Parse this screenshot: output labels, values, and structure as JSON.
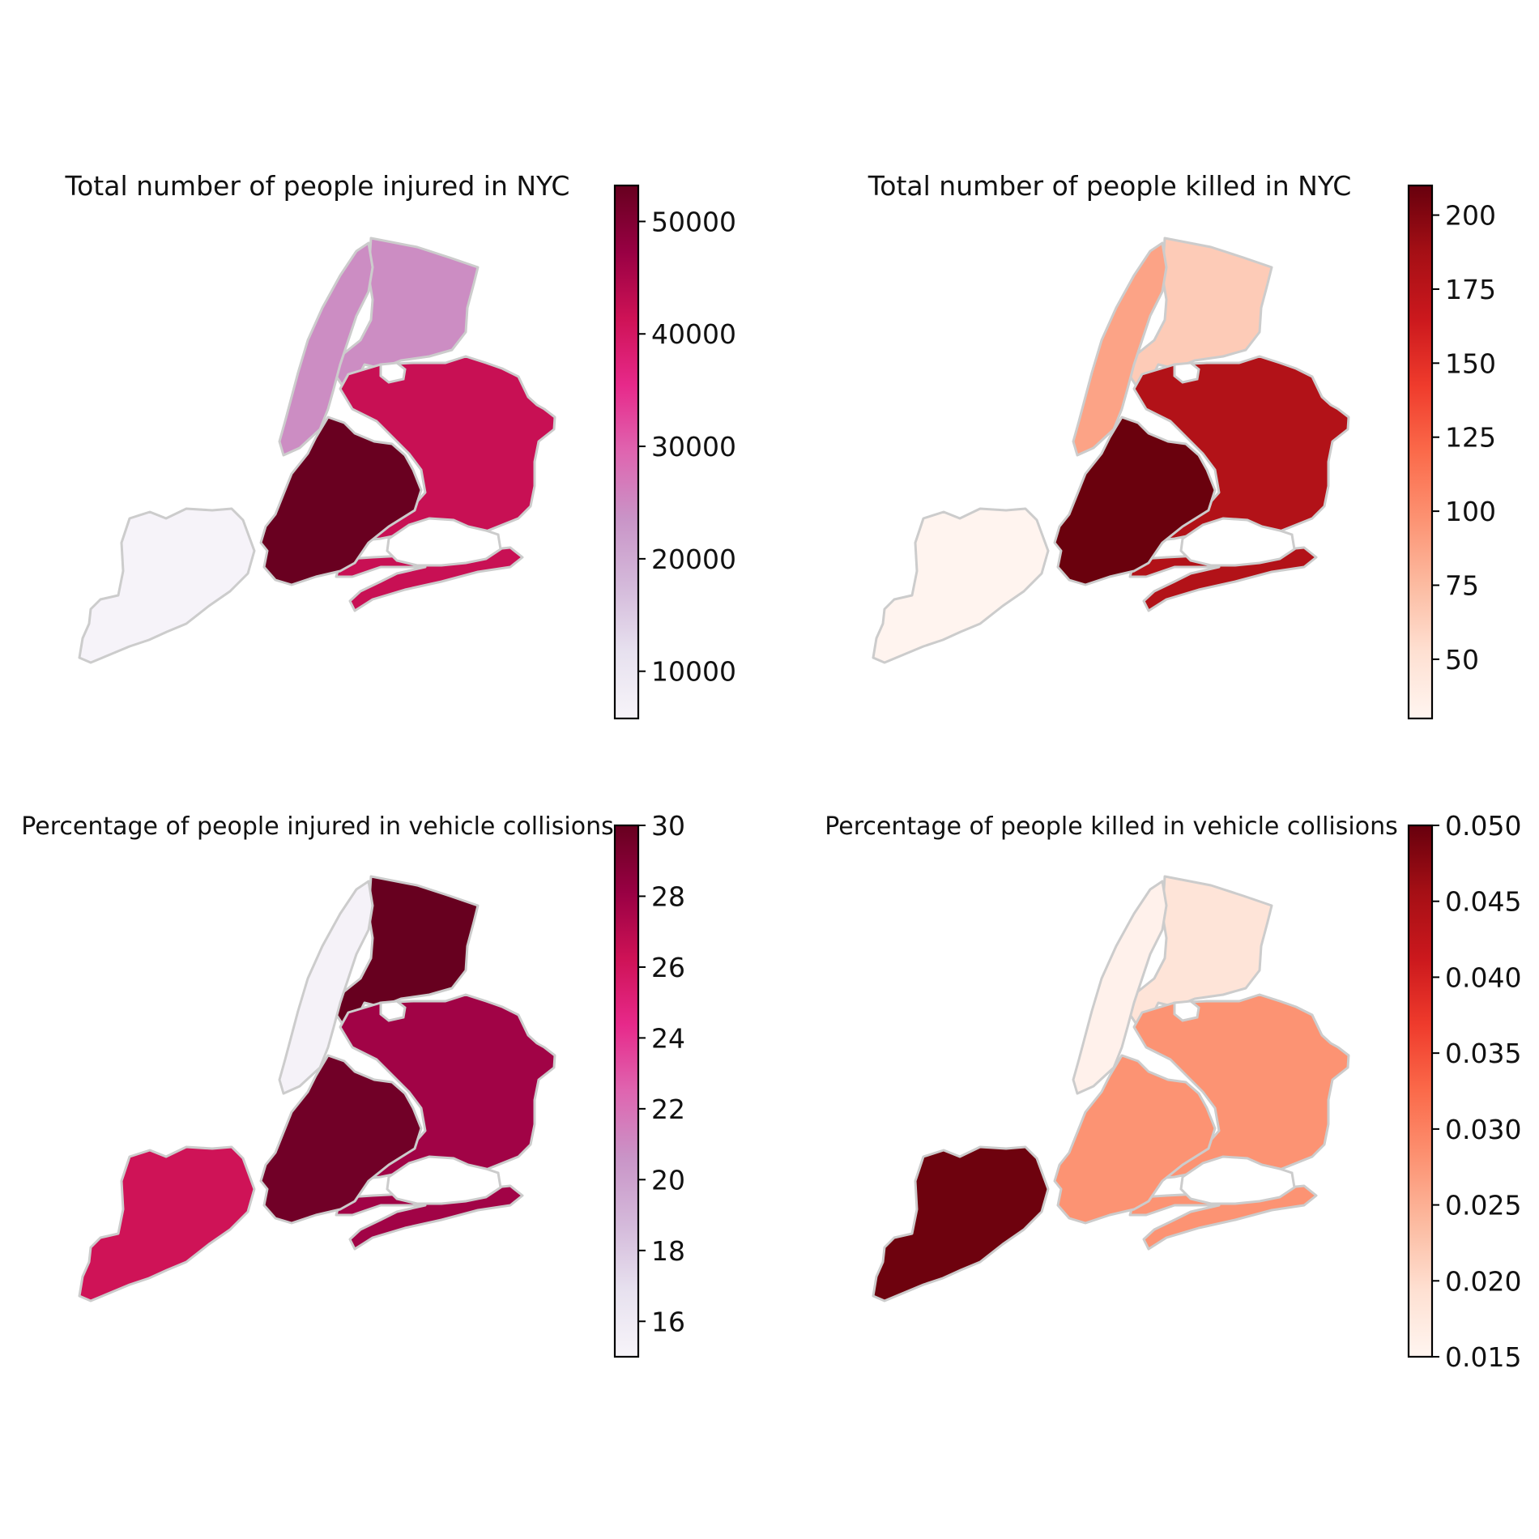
{
  "chart_data": [
    {
      "type": "choropleth",
      "title": "Total number of people injured in NYC",
      "colormap": "PuRd",
      "color_range": [
        5800,
        53200
      ],
      "ticks": [
        10000,
        20000,
        30000,
        40000,
        50000
      ],
      "tick_labels": [
        "10000",
        "20000",
        "30000",
        "40000",
        "50000"
      ],
      "regions": {
        "staten_island": 6000,
        "bronx": 24500,
        "manhattan": 24500,
        "queens": 42000,
        "brooklyn": 53000
      }
    },
    {
      "type": "choropleth",
      "title": "Total number of people killed in NYC",
      "colormap": "Reds",
      "color_range": [
        30,
        210
      ],
      "ticks": [
        50,
        75,
        100,
        125,
        150,
        175,
        200
      ],
      "tick_labels": [
        "50",
        "75",
        "100",
        "125",
        "150",
        "175",
        "200"
      ],
      "regions": {
        "staten_island": 31,
        "bronx": 65,
        "manhattan": 88,
        "queens": 180,
        "brooklyn": 209
      }
    },
    {
      "type": "choropleth",
      "title": "Percentage of people injured in vehicle collisions",
      "colormap": "PuRd",
      "color_range": [
        15,
        30
      ],
      "ticks": [
        16,
        18,
        20,
        22,
        24,
        26,
        28,
        30
      ],
      "tick_labels": [
        "16",
        "18",
        "20",
        "22",
        "24",
        "26",
        "28",
        "30"
      ],
      "regions": {
        "staten_island": 26.2,
        "bronx": 30,
        "manhattan": 15.2,
        "queens": 27.8,
        "brooklyn": 29.6
      }
    },
    {
      "type": "choropleth",
      "title": "Percentage of people killed in vehicle collisions",
      "colormap": "Reds",
      "color_range": [
        0.015,
        0.05
      ],
      "ticks": [
        0.015,
        0.02,
        0.025,
        0.03,
        0.035,
        0.04,
        0.045,
        0.05
      ],
      "tick_labels": [
        "0.015",
        "0.020",
        "0.025",
        "0.030",
        "0.035",
        "0.040",
        "0.045",
        "0.050"
      ],
      "regions": {
        "staten_island": 0.0495,
        "bronx": 0.0185,
        "manhattan": 0.0158,
        "queens": 0.028,
        "brooklyn": 0.028
      }
    }
  ]
}
